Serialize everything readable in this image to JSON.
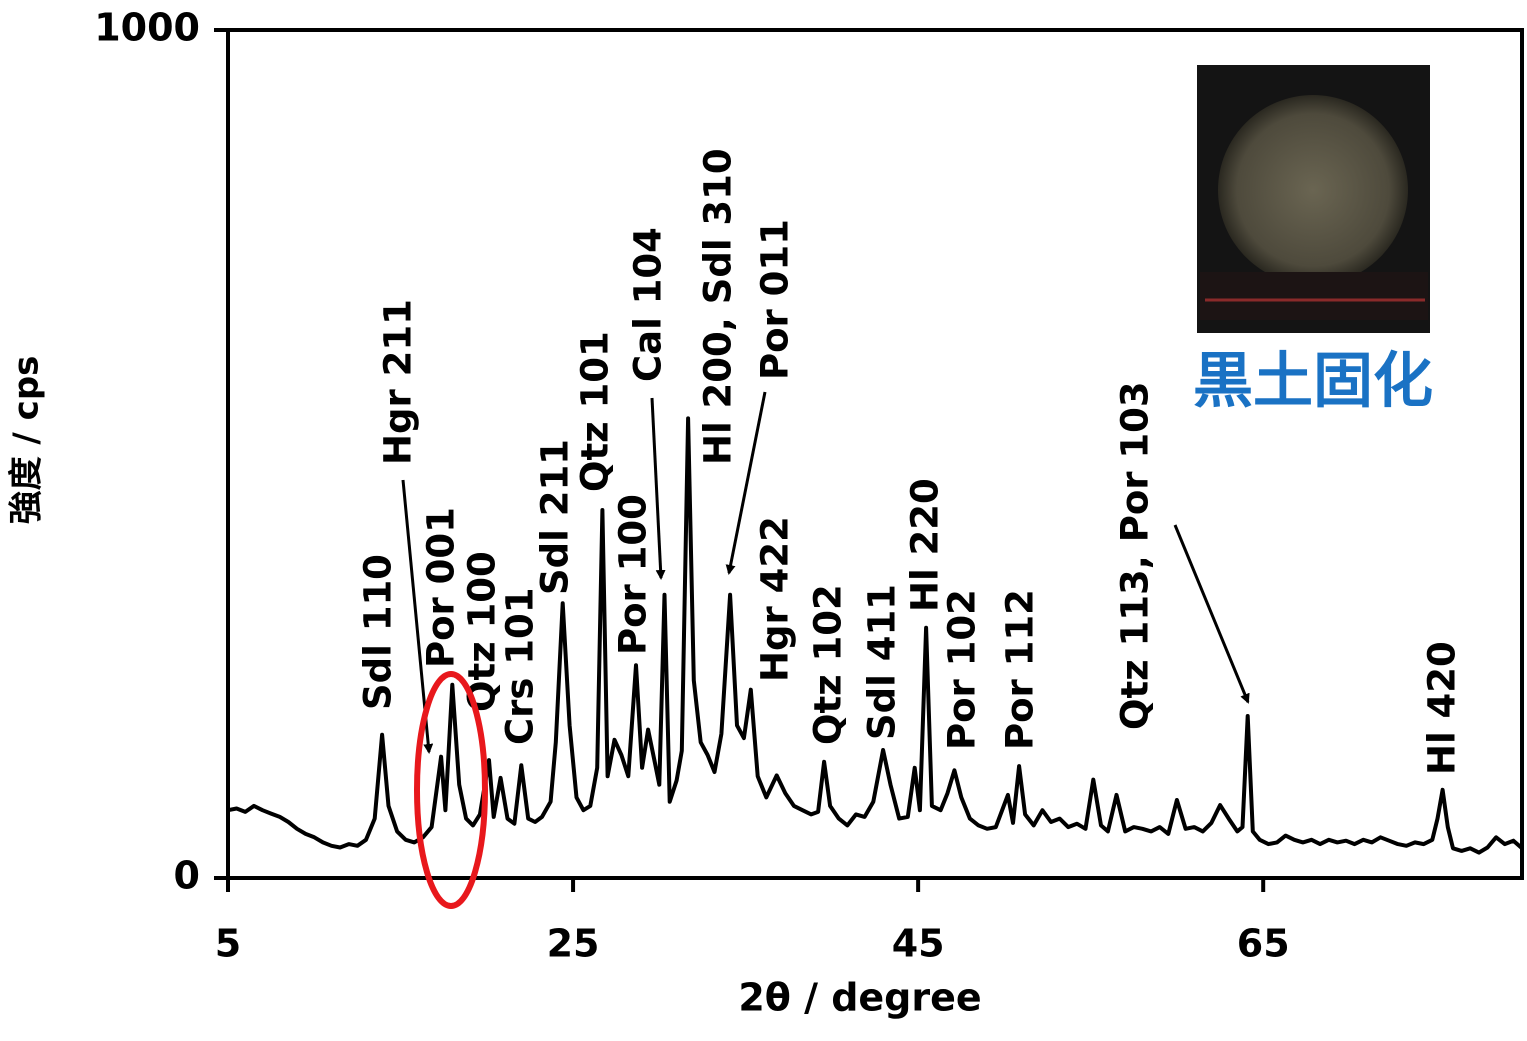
{
  "chart_data": {
    "type": "line",
    "x_label": "2θ / degree",
    "y_label": "強度 / cps",
    "inset_label": "黒土固化",
    "xlim": [
      5,
      80
    ],
    "xticks": [
      5,
      25,
      45,
      65
    ],
    "ylim": [
      0,
      1000
    ],
    "yticks": [
      0,
      1000
    ],
    "color": "#000000",
    "annotations": [
      "Sdl 110",
      "Hgr 211",
      "Por 001",
      "Qtz 100",
      "Crs 101",
      "Sdl 211",
      "Qtz 101",
      "Por 100",
      "Cal 104",
      "Hl 200, Sdl 310",
      "Por 011",
      "Hgr 422",
      "Qtz 102",
      "Sdl 411",
      "Hl 220",
      "Por 102",
      "Por 112",
      "Qtz 113, Por 103",
      "Hl 420"
    ],
    "x": [
      5,
      5.5,
      6,
      6.5,
      7,
      7.5,
      8,
      8.5,
      9,
      9.5,
      10,
      10.5,
      11,
      11.5,
      12,
      12.5,
      13,
      13.5,
      13.93,
      14.3,
      14.8,
      15.3,
      15.8,
      16.3,
      16.8,
      17.35,
      17.6,
      18.0,
      18.4,
      18.8,
      19.2,
      19.6,
      20.13,
      20.4,
      20.8,
      21.2,
      21.6,
      22.0,
      22.4,
      22.8,
      23.2,
      23.7,
      24.0,
      24.4,
      24.8,
      25.2,
      25.6,
      26.0,
      26.4,
      26.7,
      27.0,
      27.4,
      27.8,
      28.2,
      28.65,
      29.0,
      29.35,
      29.7,
      30.0,
      30.3,
      30.6,
      31.0,
      31.3,
      31.67,
      32.0,
      32.4,
      32.8,
      33.2,
      33.6,
      34.1,
      34.5,
      34.9,
      35.3,
      35.7,
      36.2,
      36.8,
      37.3,
      37.8,
      38.3,
      38.8,
      39.2,
      39.55,
      39.9,
      40.4,
      40.9,
      41.4,
      41.9,
      42.4,
      42.97,
      43.4,
      43.9,
      44.4,
      44.8,
      45.1,
      45.46,
      45.8,
      46.3,
      46.7,
      47.1,
      47.5,
      48.0,
      48.5,
      49.0,
      49.5,
      50.2,
      50.5,
      50.85,
      51.2,
      51.7,
      52.2,
      52.7,
      53.2,
      53.7,
      54.2,
      54.7,
      55.15,
      55.6,
      56.0,
      56.5,
      57.0,
      57.5,
      58.0,
      58.5,
      59.0,
      59.5,
      60.0,
      60.5,
      61.0,
      61.5,
      62.0,
      62.5,
      63.0,
      63.5,
      63.8,
      64.1,
      64.4,
      64.8,
      65.3,
      65.8,
      66.3,
      66.8,
      67.3,
      67.8,
      68.3,
      68.8,
      69.3,
      69.8,
      70.3,
      70.8,
      71.3,
      71.8,
      72.3,
      72.8,
      73.3,
      73.8,
      74.3,
      74.8,
      75.1,
      75.4,
      75.7,
      76.0,
      76.5,
      77.0,
      77.5,
      78.0,
      78.5,
      79.0,
      79.5,
      80
    ],
    "values": [
      80,
      82,
      78,
      85,
      80,
      76,
      72,
      66,
      58,
      52,
      48,
      42,
      38,
      36,
      40,
      38,
      45,
      70,
      169,
      85,
      55,
      45,
      42,
      48,
      60,
      143,
      80,
      228,
      110,
      70,
      62,
      75,
      139,
      72,
      118,
      70,
      64,
      133,
      70,
      66,
      72,
      90,
      160,
      324,
      180,
      95,
      80,
      85,
      130,
      434,
      120,
      163,
      145,
      120,
      251,
      130,
      175,
      140,
      110,
      334,
      90,
      115,
      150,
      542,
      233,
      160,
      145,
      125,
      170,
      334,
      180,
      165,
      222,
      120,
      95,
      121,
      100,
      85,
      80,
      75,
      78,
      137,
      85,
      70,
      62,
      75,
      72,
      90,
      151,
      110,
      70,
      72,
      130,
      80,
      295,
      85,
      80,
      100,
      127,
      95,
      70,
      62,
      58,
      60,
      98,
      65,
      132,
      75,
      62,
      80,
      66,
      70,
      60,
      64,
      58,
      116,
      62,
      55,
      98,
      55,
      60,
      58,
      55,
      60,
      52,
      92,
      58,
      60,
      55,
      65,
      86,
      70,
      55,
      60,
      191,
      55,
      45,
      40,
      42,
      50,
      45,
      42,
      45,
      40,
      45,
      42,
      44,
      40,
      45,
      42,
      48,
      44,
      40,
      38,
      42,
      40,
      45,
      70,
      104,
      60,
      35,
      32,
      35,
      30,
      36,
      48,
      40,
      44,
      35
    ]
  }
}
